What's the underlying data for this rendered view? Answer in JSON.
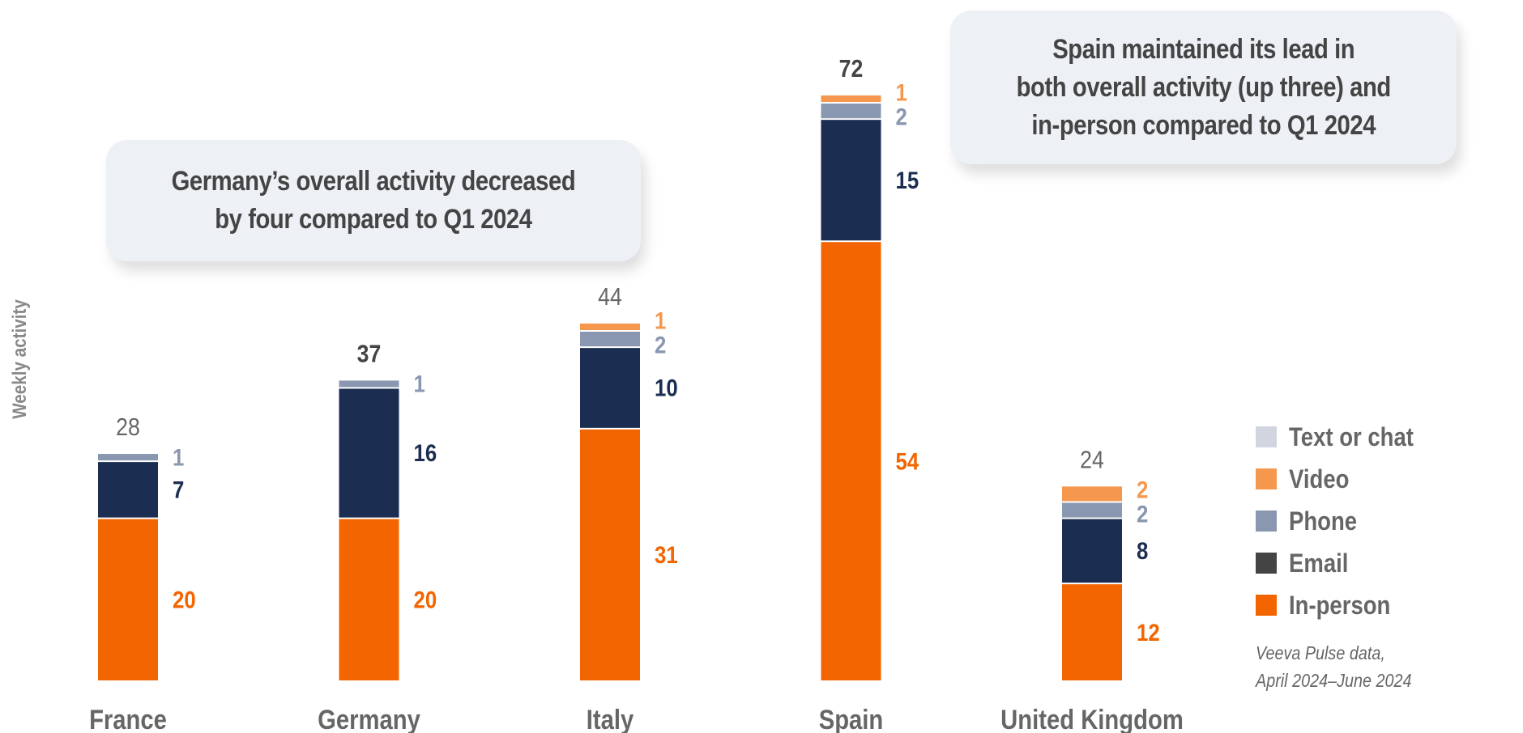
{
  "chart_data": {
    "type": "bar",
    "stacked": true,
    "title": "",
    "xlabel": "",
    "ylabel": "Weekly activity",
    "ylim": [
      0,
      82
    ],
    "grid": false,
    "categories": [
      "France",
      "Germany",
      "Italy",
      "Spain",
      "United Kingdom"
    ],
    "series": [
      {
        "name": "In-person",
        "color": "#f26500",
        "label_color": "#f26500",
        "values": [
          20,
          20,
          31,
          54,
          12
        ]
      },
      {
        "name": "Email",
        "color": "#1c2d52",
        "label_color": "#1c2d52",
        "values": [
          7,
          16,
          10,
          15,
          8
        ]
      },
      {
        "name": "Phone",
        "color": "#8a97b0",
        "label_color": "#8a97b0",
        "values": [
          1,
          1,
          2,
          2,
          2
        ]
      },
      {
        "name": "Video",
        "color": "#f5984e",
        "label_color": "#f5984e",
        "values": [
          0,
          0,
          1,
          1,
          2
        ]
      },
      {
        "name": "Text or chat",
        "color": "#d0d5df",
        "label_color": "#d0d5df",
        "values": [
          0,
          0,
          0,
          0,
          0
        ]
      }
    ],
    "totals": [
      28,
      37,
      44,
      72,
      24
    ],
    "highlighted_totals": [
      false,
      true,
      false,
      true,
      false
    ],
    "legend": {
      "placement": "right",
      "items": [
        {
          "label": "Text or chat",
          "color": "#d0d5df"
        },
        {
          "label": "Video",
          "color": "#f5984e"
        },
        {
          "label": "Phone",
          "color": "#8a97b0"
        },
        {
          "label": "Email",
          "color": "#444444"
        },
        {
          "label": "In-person",
          "color": "#f26500"
        }
      ]
    },
    "annotations": [
      {
        "target": "Germany",
        "lines": [
          "Germany’s overall activity decreased",
          "by four compared to Q1 2024"
        ]
      },
      {
        "target": "Spain",
        "lines": [
          "Spain maintained its lead in",
          "both overall activity (up three) and",
          "in-person compared to Q1 2024"
        ]
      }
    ],
    "source": [
      "Veeva Pulse data,",
      "April 2024–June 2024"
    ]
  },
  "colors": {
    "total_normal": "#666666",
    "total_highlight": "#444444",
    "category_label": "#666666",
    "callout_bg": "#edf0f5"
  }
}
